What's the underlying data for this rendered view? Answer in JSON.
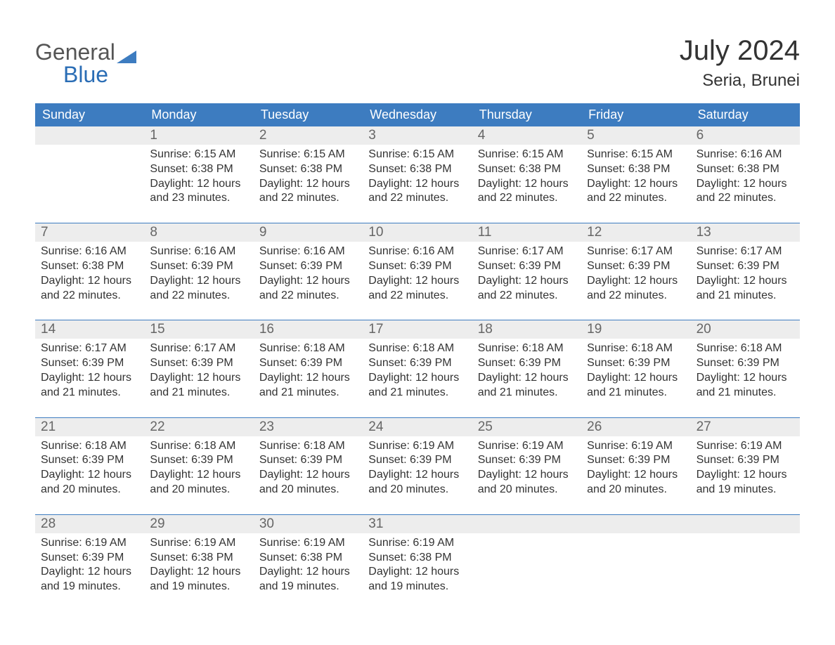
{
  "brand": {
    "text1": "General",
    "text2": "Blue",
    "triangle_color": "#3d7cc0"
  },
  "title": "July 2024",
  "location": "Seria, Brunei",
  "colors": {
    "header_bg": "#3d7cc0",
    "header_text": "#ffffff",
    "daynum_bg": "#ededed",
    "daynum_text": "#666666",
    "body_text": "#333333",
    "week_divider": "#3d7cc0",
    "page_bg": "#ffffff"
  },
  "typography": {
    "title_fontsize": 40,
    "location_fontsize": 24,
    "dow_fontsize": 18,
    "daynum_fontsize": 19,
    "body_fontsize": 16,
    "logo_fontsize": 32
  },
  "day_names": [
    "Sunday",
    "Monday",
    "Tuesday",
    "Wednesday",
    "Thursday",
    "Friday",
    "Saturday"
  ],
  "weeks": [
    [
      null,
      {
        "n": "1",
        "sunrise": "6:15 AM",
        "sunset": "6:38 PM",
        "daylight": "12 hours and 23 minutes."
      },
      {
        "n": "2",
        "sunrise": "6:15 AM",
        "sunset": "6:38 PM",
        "daylight": "12 hours and 22 minutes."
      },
      {
        "n": "3",
        "sunrise": "6:15 AM",
        "sunset": "6:38 PM",
        "daylight": "12 hours and 22 minutes."
      },
      {
        "n": "4",
        "sunrise": "6:15 AM",
        "sunset": "6:38 PM",
        "daylight": "12 hours and 22 minutes."
      },
      {
        "n": "5",
        "sunrise": "6:15 AM",
        "sunset": "6:38 PM",
        "daylight": "12 hours and 22 minutes."
      },
      {
        "n": "6",
        "sunrise": "6:16 AM",
        "sunset": "6:38 PM",
        "daylight": "12 hours and 22 minutes."
      }
    ],
    [
      {
        "n": "7",
        "sunrise": "6:16 AM",
        "sunset": "6:38 PM",
        "daylight": "12 hours and 22 minutes."
      },
      {
        "n": "8",
        "sunrise": "6:16 AM",
        "sunset": "6:39 PM",
        "daylight": "12 hours and 22 minutes."
      },
      {
        "n": "9",
        "sunrise": "6:16 AM",
        "sunset": "6:39 PM",
        "daylight": "12 hours and 22 minutes."
      },
      {
        "n": "10",
        "sunrise": "6:16 AM",
        "sunset": "6:39 PM",
        "daylight": "12 hours and 22 minutes."
      },
      {
        "n": "11",
        "sunrise": "6:17 AM",
        "sunset": "6:39 PM",
        "daylight": "12 hours and 22 minutes."
      },
      {
        "n": "12",
        "sunrise": "6:17 AM",
        "sunset": "6:39 PM",
        "daylight": "12 hours and 22 minutes."
      },
      {
        "n": "13",
        "sunrise": "6:17 AM",
        "sunset": "6:39 PM",
        "daylight": "12 hours and 21 minutes."
      }
    ],
    [
      {
        "n": "14",
        "sunrise": "6:17 AM",
        "sunset": "6:39 PM",
        "daylight": "12 hours and 21 minutes."
      },
      {
        "n": "15",
        "sunrise": "6:17 AM",
        "sunset": "6:39 PM",
        "daylight": "12 hours and 21 minutes."
      },
      {
        "n": "16",
        "sunrise": "6:18 AM",
        "sunset": "6:39 PM",
        "daylight": "12 hours and 21 minutes."
      },
      {
        "n": "17",
        "sunrise": "6:18 AM",
        "sunset": "6:39 PM",
        "daylight": "12 hours and 21 minutes."
      },
      {
        "n": "18",
        "sunrise": "6:18 AM",
        "sunset": "6:39 PM",
        "daylight": "12 hours and 21 minutes."
      },
      {
        "n": "19",
        "sunrise": "6:18 AM",
        "sunset": "6:39 PM",
        "daylight": "12 hours and 21 minutes."
      },
      {
        "n": "20",
        "sunrise": "6:18 AM",
        "sunset": "6:39 PM",
        "daylight": "12 hours and 21 minutes."
      }
    ],
    [
      {
        "n": "21",
        "sunrise": "6:18 AM",
        "sunset": "6:39 PM",
        "daylight": "12 hours and 20 minutes."
      },
      {
        "n": "22",
        "sunrise": "6:18 AM",
        "sunset": "6:39 PM",
        "daylight": "12 hours and 20 minutes."
      },
      {
        "n": "23",
        "sunrise": "6:18 AM",
        "sunset": "6:39 PM",
        "daylight": "12 hours and 20 minutes."
      },
      {
        "n": "24",
        "sunrise": "6:19 AM",
        "sunset": "6:39 PM",
        "daylight": "12 hours and 20 minutes."
      },
      {
        "n": "25",
        "sunrise": "6:19 AM",
        "sunset": "6:39 PM",
        "daylight": "12 hours and 20 minutes."
      },
      {
        "n": "26",
        "sunrise": "6:19 AM",
        "sunset": "6:39 PM",
        "daylight": "12 hours and 20 minutes."
      },
      {
        "n": "27",
        "sunrise": "6:19 AM",
        "sunset": "6:39 PM",
        "daylight": "12 hours and 19 minutes."
      }
    ],
    [
      {
        "n": "28",
        "sunrise": "6:19 AM",
        "sunset": "6:39 PM",
        "daylight": "12 hours and 19 minutes."
      },
      {
        "n": "29",
        "sunrise": "6:19 AM",
        "sunset": "6:38 PM",
        "daylight": "12 hours and 19 minutes."
      },
      {
        "n": "30",
        "sunrise": "6:19 AM",
        "sunset": "6:38 PM",
        "daylight": "12 hours and 19 minutes."
      },
      {
        "n": "31",
        "sunrise": "6:19 AM",
        "sunset": "6:38 PM",
        "daylight": "12 hours and 19 minutes."
      },
      null,
      null,
      null
    ]
  ],
  "labels": {
    "sunrise_prefix": "Sunrise: ",
    "sunset_prefix": "Sunset: ",
    "daylight_prefix": "Daylight: "
  }
}
